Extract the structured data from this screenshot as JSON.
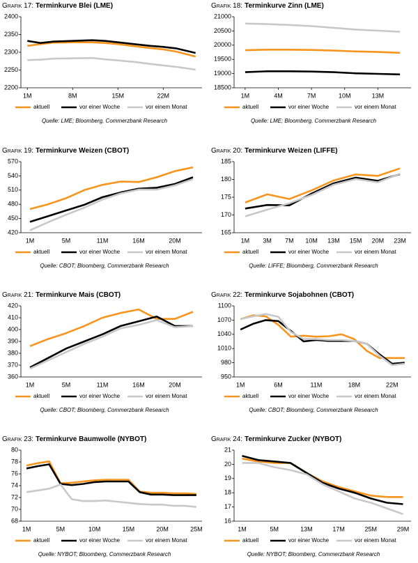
{
  "chart_data": [
    {
      "type": "line",
      "label": "Grafik 17:",
      "title": "Terminkurve Blei (LME)",
      "x": [
        1,
        3,
        5,
        8,
        11,
        13,
        15,
        18,
        20,
        22,
        24,
        27
      ],
      "xlim": [
        0,
        28
      ],
      "xticks": [
        {
          "value": 1,
          "label": "1M"
        },
        {
          "value": 8,
          "label": "8M"
        },
        {
          "value": 15,
          "label": "15M"
        },
        {
          "value": 22,
          "label": "22M"
        }
      ],
      "ylim": [
        2200,
        2400
      ],
      "yticks": [
        2200,
        2250,
        2300,
        2350,
        2400
      ],
      "series": [
        {
          "name": "aktuell",
          "color": "#f7941d",
          "values": [
            2318,
            2323,
            2327,
            2328,
            2328,
            2326,
            2323,
            2316,
            2312,
            2308,
            2302,
            2288
          ]
        },
        {
          "name": "vor einer Woche",
          "color": "#000000",
          "values": [
            2332,
            2326,
            2330,
            2332,
            2334,
            2332,
            2328,
            2322,
            2318,
            2315,
            2311,
            2298
          ]
        },
        {
          "name": "vor einem Monat",
          "color": "#c8c8c8",
          "values": [
            2278,
            2279,
            2282,
            2283,
            2284,
            2280,
            2277,
            2272,
            2267,
            2263,
            2259,
            2251
          ]
        }
      ],
      "source": "Quelle: LME; Bloomberg, Commerzbank Research"
    },
    {
      "type": "line",
      "label": "Grafik 18:",
      "title": "Terminkurve Zinn (LME)",
      "x": [
        1,
        3,
        5,
        7,
        9,
        11,
        13,
        15
      ],
      "xlim": [
        0,
        16
      ],
      "xticks": [
        {
          "value": 1,
          "label": "1M"
        },
        {
          "value": 4,
          "label": "4M"
        },
        {
          "value": 7,
          "label": "7M"
        },
        {
          "value": 10,
          "label": "10M"
        },
        {
          "value": 13,
          "label": "13M"
        }
      ],
      "ylim": [
        18500,
        21000
      ],
      "yticks": [
        18500,
        19000,
        19500,
        20000,
        20500,
        21000
      ],
      "series": [
        {
          "name": "aktuell",
          "color": "#f7941d",
          "values": [
            19820,
            19840,
            19840,
            19830,
            19810,
            19780,
            19760,
            19730
          ]
        },
        {
          "name": "vor einer Woche",
          "color": "#000000",
          "values": [
            19050,
            19080,
            19080,
            19070,
            19050,
            19010,
            18990,
            18970
          ]
        },
        {
          "name": "vor einem Monat",
          "color": "#c8c8c8",
          "values": [
            20760,
            20740,
            20710,
            20670,
            20610,
            20550,
            20510,
            20470
          ]
        }
      ],
      "source": "Quelle: LME; Bloomberg, Commerzbank Research"
    },
    {
      "type": "line",
      "label": "Grafik 19:",
      "title": "Terminkurve Weizen (CBOT)",
      "categories": [
        "1M",
        null,
        "5M",
        null,
        "11M",
        null,
        "16M",
        null,
        "20M",
        null
      ],
      "ylim": [
        420,
        570
      ],
      "yticks": [
        420,
        450,
        480,
        510,
        540,
        570
      ],
      "series": [
        {
          "name": "aktuell",
          "color": "#f7941d",
          "values": [
            470,
            480,
            493,
            510,
            521,
            528,
            527,
            537,
            550,
            558
          ]
        },
        {
          "name": "vor einer Woche",
          "color": "#000000",
          "values": [
            443,
            455,
            467,
            479,
            495,
            505,
            513,
            515,
            523,
            537
          ]
        },
        {
          "name": "vor einem Monat",
          "color": "#c8c8c8",
          "values": [
            425,
            442,
            458,
            473,
            490,
            503,
            511,
            511,
            520,
            533
          ]
        }
      ],
      "source": "Quelle: CBOT; Bloomberg, Commerzbank Research"
    },
    {
      "type": "line",
      "label": "Grafik 20:",
      "title": "Terminkurve Weizen (LIFFE)",
      "categories": [
        "1M",
        "3M",
        "7M",
        "10M",
        "13M",
        "15M",
        "20M",
        "23M"
      ],
      "ylim": [
        165,
        185
      ],
      "yticks": [
        165,
        170,
        175,
        180,
        185
      ],
      "series": [
        {
          "name": "aktuell",
          "color": "#f7941d",
          "values": [
            173.5,
            175.8,
            174.5,
            176.9,
            179.7,
            181.4,
            181.0,
            183.1
          ]
        },
        {
          "name": "vor einer Woche",
          "color": "#000000",
          "values": [
            171.8,
            172.8,
            172.7,
            176.0,
            178.9,
            180.5,
            179.6,
            181.5
          ]
        },
        {
          "name": "vor einem Monat",
          "color": "#c8c8c8",
          "values": [
            169.6,
            171.5,
            173.3,
            175.6,
            178.5,
            180.1,
            179.2,
            181.6
          ]
        }
      ],
      "source": "Quelle: LIFFE; Bloomberg, Commerzbank Research"
    },
    {
      "type": "line",
      "label": "Grafik 21:",
      "title": "Terminkurve Mais (CBOT)",
      "categories": [
        "1M",
        null,
        "5M",
        null,
        "11M",
        null,
        "16M",
        null,
        "20M",
        null
      ],
      "ylim": [
        360,
        420
      ],
      "yticks": [
        360,
        370,
        380,
        390,
        400,
        410,
        420
      ],
      "series": [
        {
          "name": "aktuell",
          "color": "#f7941d",
          "values": [
            386,
            392,
            397,
            403,
            410,
            414,
            417,
            409,
            409,
            415
          ]
        },
        {
          "name": "vor einer Woche",
          "color": "#000000",
          "values": [
            368,
            376,
            384,
            390,
            396,
            403,
            407,
            411,
            403,
            403
          ]
        },
        {
          "name": "vor einem Monat",
          "color": "#c8c8c8",
          "values": [
            367,
            374,
            381,
            388,
            394,
            401,
            404,
            408,
            402,
            403
          ]
        }
      ],
      "source": "Quelle: CBOT; Bloomberg, Commerzbank Research"
    },
    {
      "type": "line",
      "label": "Grafik 22:",
      "title": "Terminkurve Sojabohnen (CBOT)",
      "categories": [
        "1M",
        null,
        null,
        "6M",
        null,
        null,
        "11M",
        null,
        null,
        "18M",
        null,
        null,
        "22M",
        null
      ],
      "ylim": [
        950,
        1100
      ],
      "yticks": [
        950,
        980,
        1010,
        1040,
        1070,
        1100
      ],
      "series": [
        {
          "name": "aktuell",
          "color": "#f7941d",
          "values": [
            1072,
            1080,
            1078,
            1060,
            1035,
            1037,
            1035,
            1036,
            1040,
            1030,
            1005,
            990,
            990,
            990
          ]
        },
        {
          "name": "vor einer Woche",
          "color": "#000000",
          "values": [
            1050,
            1062,
            1070,
            1068,
            1047,
            1025,
            1028,
            1026,
            1026,
            1026,
            1020,
            998,
            978,
            980
          ]
        },
        {
          "name": "vor einem Monat",
          "color": "#c8c8c8",
          "values": [
            1072,
            1078,
            1083,
            1077,
            1045,
            1030,
            1030,
            1028,
            1028,
            1026,
            1020,
            995,
            975,
            978
          ]
        }
      ],
      "source": "Quelle: CBOT; Bloomberg, Commerzbank Research"
    },
    {
      "type": "line",
      "label": "Grafik 23:",
      "title": "Terminkurve Baumwolle (NYBOT)",
      "categories": [
        "1M",
        null,
        null,
        "5M",
        null,
        null,
        "10M",
        null,
        null,
        "15M",
        null,
        null,
        "20M",
        null,
        null,
        "25M"
      ],
      "ylim": [
        68,
        80
      ],
      "yticks": [
        68,
        70,
        72,
        74,
        76,
        78,
        80
      ],
      "series": [
        {
          "name": "aktuell",
          "color": "#f7941d",
          "values": [
            77.4,
            77.8,
            78.1,
            74.4,
            74.5,
            74.7,
            74.9,
            75.0,
            75.0,
            75.0,
            73.0,
            72.8,
            72.8,
            72.7,
            72.7,
            72.6
          ]
        },
        {
          "name": "vor einer Woche",
          "color": "#000000",
          "values": [
            76.9,
            77.3,
            77.6,
            74.3,
            74.1,
            74.3,
            74.6,
            74.7,
            74.7,
            74.7,
            72.9,
            72.5,
            72.5,
            72.4,
            72.4,
            72.4
          ]
        },
        {
          "name": "vor einem Monat",
          "color": "#c8c8c8",
          "values": [
            72.9,
            73.2,
            73.5,
            74.2,
            71.7,
            71.4,
            71.4,
            71.5,
            71.3,
            71.1,
            70.9,
            70.8,
            70.8,
            70.6,
            70.6,
            70.4
          ]
        }
      ],
      "source": "Quelle: NYBOT; Bloomberg, Commerzbank Research"
    },
    {
      "type": "line",
      "label": "Grafik 24:",
      "title": "Terminkurve Zucker (NYBOT)",
      "categories": [
        "1M",
        null,
        "5M",
        null,
        "13M",
        null,
        "17M",
        null,
        "25M",
        null,
        "29M"
      ],
      "ylim": [
        16,
        21
      ],
      "yticks": [
        16,
        17,
        18,
        19,
        20,
        21
      ],
      "series": [
        {
          "name": "aktuell",
          "color": "#f7941d",
          "values": [
            20.4,
            20.2,
            20.1,
            20.1,
            19.4,
            18.8,
            18.4,
            18.1,
            17.8,
            17.7,
            17.7
          ]
        },
        {
          "name": "vor einer Woche",
          "color": "#000000",
          "values": [
            20.6,
            20.3,
            20.2,
            20.1,
            19.4,
            18.7,
            18.3,
            18.0,
            17.6,
            17.3,
            17.2
          ]
        },
        {
          "name": "vor einem Monat",
          "color": "#c8c8c8",
          "values": [
            20.1,
            20.1,
            19.8,
            19.6,
            19.3,
            18.6,
            18.1,
            17.6,
            17.3,
            16.9,
            16.5
          ]
        }
      ],
      "source": "Quelle: NYBOT; Bloomberg, Commerzbank Research"
    }
  ]
}
